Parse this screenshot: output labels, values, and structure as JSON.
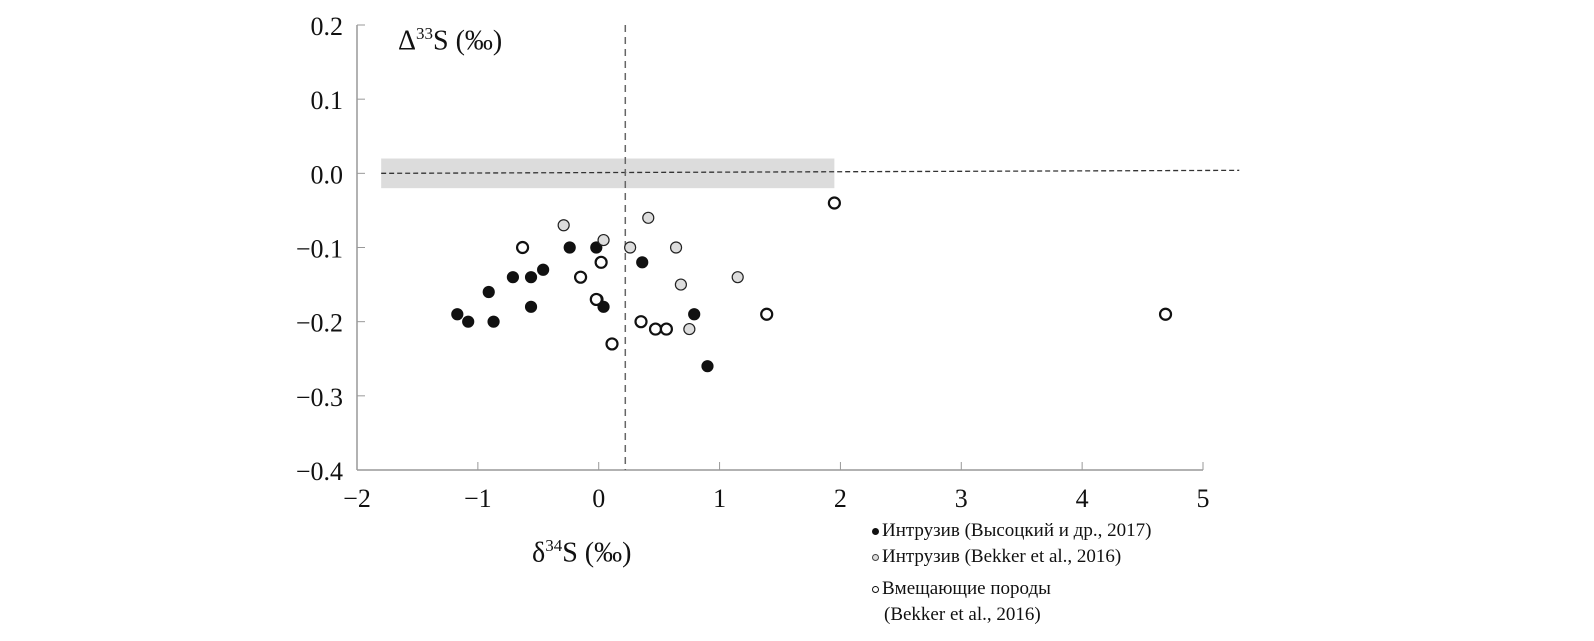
{
  "chart_data": {
    "type": "scatter",
    "xlabel": "δ34S (‰)",
    "ylabel": "Δ33S (‰)",
    "xlim": [
      -2,
      5
    ],
    "ylim": [
      -0.4,
      0.2
    ],
    "xticks": [
      "−2",
      "−1",
      "0",
      "1",
      "2",
      "3",
      "4",
      "5"
    ],
    "yticks": [
      "0.2",
      "0.1",
      "0.0",
      "−0.1",
      "−0.2",
      "−0.3",
      "−0.4"
    ],
    "grid": false,
    "legend_position": "bottom-right",
    "band": {
      "x": [
        -1.8,
        1.95
      ],
      "y": [
        -0.02,
        0.02
      ],
      "color": "#dcdcdc"
    },
    "ref_lines": {
      "horizontal_y": 0.0,
      "horizontal_x_range": [
        -1.8,
        5.3
      ],
      "vertical_x": 0.22
    },
    "series": [
      {
        "name": "Интрузив (Высоцкий и др., 2017)",
        "fill": "#111111",
        "stroke": "#111111",
        "x": [
          -1.17,
          -1.08,
          -0.91,
          -0.87,
          -0.71,
          -0.56,
          -0.56,
          -0.46,
          -0.24,
          -0.02,
          -0.01,
          0.04,
          0.36,
          0.79,
          0.9
        ],
        "y": [
          -0.19,
          -0.2,
          -0.16,
          -0.2,
          -0.14,
          -0.14,
          -0.18,
          -0.13,
          -0.1,
          -0.1,
          -0.17,
          -0.18,
          -0.12,
          -0.19,
          -0.26
        ]
      },
      {
        "name": "Интрузив (Bekker et al., 2016)",
        "fill": "#dddddd",
        "stroke": "#222222",
        "x": [
          -0.29,
          0.04,
          0.26,
          0.41,
          0.64,
          0.68,
          0.75,
          1.15
        ],
        "y": [
          -0.07,
          -0.09,
          -0.1,
          -0.06,
          -0.1,
          -0.15,
          -0.21,
          -0.14
        ]
      },
      {
        "name": "Вмещающие породы (Bekker et al., 2016)",
        "fill": "#ffffff",
        "stroke": "#111111",
        "x": [
          -0.63,
          -0.15,
          0.02,
          -0.02,
          0.11,
          0.35,
          0.47,
          0.56,
          1.39,
          1.95,
          4.69
        ],
        "y": [
          -0.1,
          -0.14,
          -0.12,
          -0.17,
          -0.23,
          -0.2,
          -0.21,
          -0.21,
          -0.19,
          -0.04,
          -0.19
        ]
      }
    ],
    "legend": {
      "l1": "Интрузив (Высоцкий и др., 2017)",
      "l2": "Интрузив (Bekker et al., 2016)",
      "l3a": "Вмещающие породы",
      "l3b": "(Bekker et al., 2016)"
    }
  }
}
